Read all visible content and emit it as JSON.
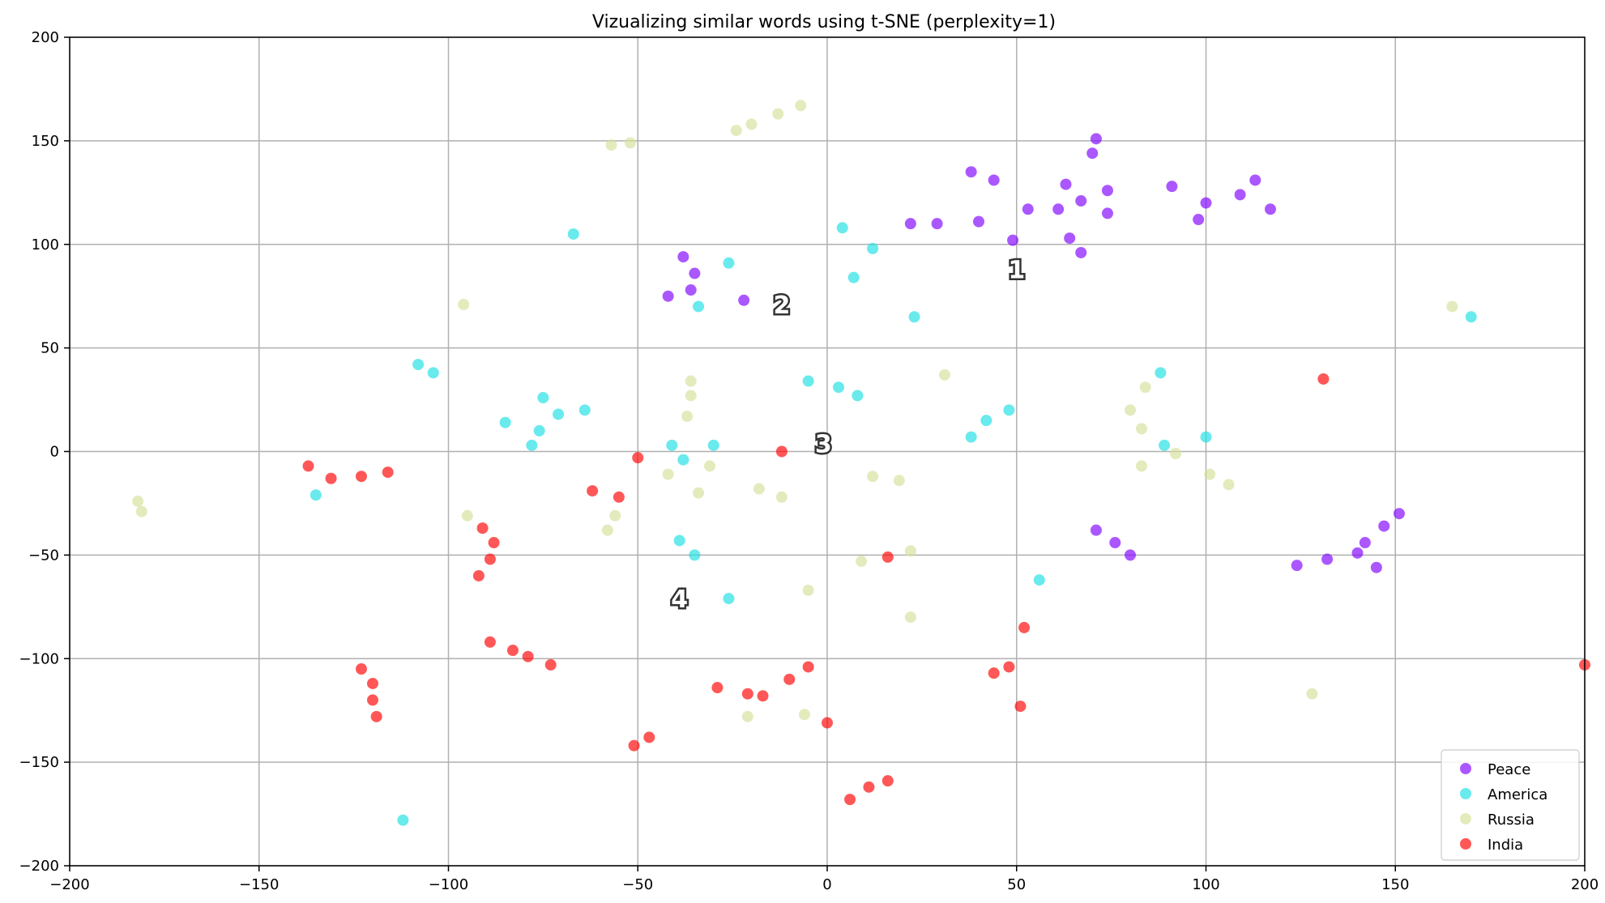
{
  "chart_data": {
    "type": "scatter",
    "title": "Vizualizing similar words using t-SNE (perplexity=1)",
    "xlabel": "",
    "ylabel": "",
    "xlim": [
      -200,
      200
    ],
    "ylim": [
      -200,
      200
    ],
    "xticks": [
      -200,
      -150,
      -100,
      -50,
      0,
      50,
      100,
      150,
      200
    ],
    "yticks": [
      -200,
      -150,
      -100,
      -50,
      0,
      50,
      100,
      150,
      200
    ],
    "xtick_labels": [
      "−200",
      "−150",
      "−100",
      "−50",
      "0",
      "50",
      "100",
      "150",
      "200"
    ],
    "ytick_labels": [
      "−200",
      "−150",
      "−100",
      "−50",
      "0",
      "50",
      "100",
      "150",
      "200"
    ],
    "grid": true,
    "legend_position": "lower-right",
    "annotations": [
      {
        "text": "1",
        "x": 50,
        "y": 87
      },
      {
        "text": "2",
        "x": -12,
        "y": 70
      },
      {
        "text": "3",
        "x": -1,
        "y": 3
      },
      {
        "text": "4",
        "x": -39,
        "y": -72
      }
    ],
    "series": [
      {
        "name": "Peace",
        "color": "#8000ff",
        "points": [
          [
            22,
            110
          ],
          [
            29,
            110
          ],
          [
            38,
            135
          ],
          [
            40,
            111
          ],
          [
            44,
            131
          ],
          [
            49,
            102
          ],
          [
            53,
            117
          ],
          [
            61,
            117
          ],
          [
            63,
            129
          ],
          [
            64,
            103
          ],
          [
            67,
            121
          ],
          [
            67,
            96
          ],
          [
            70,
            144
          ],
          [
            71,
            151
          ],
          [
            74,
            126
          ],
          [
            74,
            115
          ],
          [
            91,
            128
          ],
          [
            98,
            112
          ],
          [
            100,
            120
          ],
          [
            109,
            124
          ],
          [
            113,
            131
          ],
          [
            117,
            117
          ],
          [
            -42,
            75
          ],
          [
            -38,
            94
          ],
          [
            -36,
            78
          ],
          [
            -35,
            86
          ],
          [
            -22,
            73
          ],
          [
            71,
            -38
          ],
          [
            76,
            -44
          ],
          [
            80,
            -50
          ],
          [
            124,
            -55
          ],
          [
            132,
            -52
          ],
          [
            140,
            -49
          ],
          [
            142,
            -44
          ],
          [
            145,
            -56
          ],
          [
            147,
            -36
          ],
          [
            151,
            -30
          ]
        ]
      },
      {
        "name": "America",
        "color": "#1cdfe3",
        "points": [
          [
            -67,
            105
          ],
          [
            -26,
            91
          ],
          [
            -34,
            70
          ],
          [
            4,
            108
          ],
          [
            7,
            84
          ],
          [
            12,
            98
          ],
          [
            23,
            65
          ],
          [
            -108,
            42
          ],
          [
            -104,
            38
          ],
          [
            -75,
            26
          ],
          [
            -71,
            18
          ],
          [
            -64,
            20
          ],
          [
            -85,
            14
          ],
          [
            -76,
            10
          ],
          [
            -78,
            3
          ],
          [
            -41,
            3
          ],
          [
            -38,
            -4
          ],
          [
            -30,
            3
          ],
          [
            -5,
            34
          ],
          [
            3,
            31
          ],
          [
            8,
            27
          ],
          [
            38,
            7
          ],
          [
            42,
            15
          ],
          [
            48,
            20
          ],
          [
            88,
            38
          ],
          [
            89,
            3
          ],
          [
            100,
            7
          ],
          [
            170,
            65
          ],
          [
            -135,
            -21
          ],
          [
            -39,
            -43
          ],
          [
            -35,
            -50
          ],
          [
            -26,
            -71
          ],
          [
            56,
            -62
          ],
          [
            -112,
            -178
          ]
        ]
      },
      {
        "name": "Russia",
        "color": "#d5e19b",
        "points": [
          [
            -57,
            148
          ],
          [
            -52,
            149
          ],
          [
            -24,
            155
          ],
          [
            -20,
            158
          ],
          [
            -13,
            163
          ],
          [
            -7,
            167
          ],
          [
            -96,
            71
          ],
          [
            -36,
            34
          ],
          [
            -36,
            27
          ],
          [
            -37,
            17
          ],
          [
            -42,
            -11
          ],
          [
            -31,
            -7
          ],
          [
            -34,
            -20
          ],
          [
            -18,
            -18
          ],
          [
            -12,
            -22
          ],
          [
            12,
            -12
          ],
          [
            19,
            -14
          ],
          [
            31,
            37
          ],
          [
            84,
            31
          ],
          [
            80,
            20
          ],
          [
            83,
            11
          ],
          [
            92,
            -1
          ],
          [
            83,
            -7
          ],
          [
            101,
            -11
          ],
          [
            106,
            -16
          ],
          [
            165,
            70
          ],
          [
            -182,
            -24
          ],
          [
            -181,
            -29
          ],
          [
            -95,
            -31
          ],
          [
            -56,
            -31
          ],
          [
            -58,
            -38
          ],
          [
            9,
            -53
          ],
          [
            22,
            -48
          ],
          [
            -5,
            -67
          ],
          [
            22,
            -80
          ],
          [
            -21,
            -128
          ],
          [
            -6,
            -127
          ],
          [
            128,
            -117
          ]
        ]
      },
      {
        "name": "India",
        "color": "#ff0000",
        "points": [
          [
            -137,
            -7
          ],
          [
            -131,
            -13
          ],
          [
            -123,
            -12
          ],
          [
            -116,
            -10
          ],
          [
            -50,
            -3
          ],
          [
            -12,
            0
          ],
          [
            131,
            35
          ],
          [
            -62,
            -19
          ],
          [
            -55,
            -22
          ],
          [
            -91,
            -37
          ],
          [
            -88,
            -44
          ],
          [
            -89,
            -52
          ],
          [
            -92,
            -60
          ],
          [
            16,
            -51
          ],
          [
            -89,
            -92
          ],
          [
            -83,
            -96
          ],
          [
            -79,
            -99
          ],
          [
            -73,
            -103
          ],
          [
            -123,
            -105
          ],
          [
            -120,
            -112
          ],
          [
            -120,
            -120
          ],
          [
            -119,
            -128
          ],
          [
            -29,
            -114
          ],
          [
            -21,
            -117
          ],
          [
            -17,
            -118
          ],
          [
            -10,
            -110
          ],
          [
            -5,
            -104
          ],
          [
            44,
            -107
          ],
          [
            48,
            -104
          ],
          [
            52,
            -85
          ],
          [
            51,
            -123
          ],
          [
            0,
            -131
          ],
          [
            -51,
            -142
          ],
          [
            -47,
            -138
          ],
          [
            6,
            -168
          ],
          [
            11,
            -162
          ],
          [
            16,
            -159
          ],
          [
            200,
            -103
          ]
        ]
      }
    ]
  }
}
